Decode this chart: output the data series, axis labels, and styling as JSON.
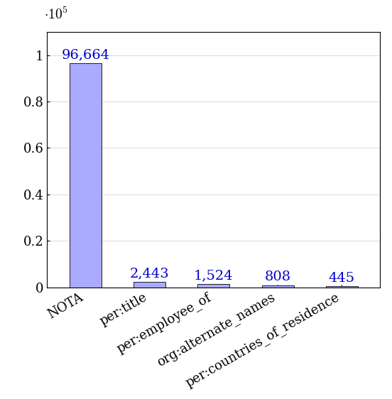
{
  "categories": [
    "NOTA",
    "per:title",
    "per:employee_of",
    "org:alternate_names",
    "per:countries_of_residence"
  ],
  "values": [
    96664,
    2443,
    1524,
    808,
    445
  ],
  "labels": [
    "96,664",
    "2,443",
    "1,524",
    "808",
    "445"
  ],
  "bar_color": "#aaaaff",
  "bar_edge_color": "#000000",
  "label_color": "#0000cc",
  "background_color": "#ffffff",
  "ylim": [
    0,
    110000
  ],
  "yticks": [
    0,
    20000,
    40000,
    60000,
    80000,
    100000
  ],
  "ytick_labels": [
    "0",
    "0.2",
    "0.4",
    "0.6",
    "0.8",
    "1"
  ],
  "label_fontsize": 14,
  "tick_fontsize": 13
}
